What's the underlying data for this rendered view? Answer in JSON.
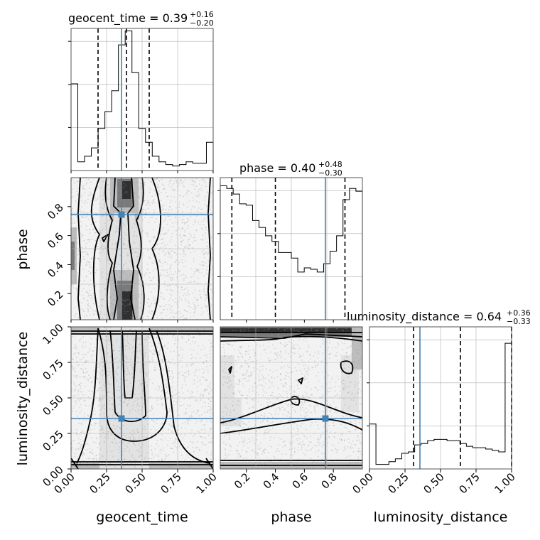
{
  "chart_data": {
    "type": "corner",
    "colors": {
      "truth": "#4682b4",
      "hist": "#000000",
      "contour": "#000000",
      "scatter": "#9a9a9a"
    },
    "parameters": [
      {
        "name": "geocent_time",
        "median": "0.39",
        "plus": "+0.16",
        "minus": "−0.20",
        "truth": 0.355,
        "quantiles": [
          0.19,
          0.39,
          0.55
        ],
        "range": [
          0,
          1
        ]
      },
      {
        "name": "phase",
        "median": "0.40",
        "plus": "+0.48",
        "minus": "−0.30",
        "truth": 0.745,
        "quantiles": [
          0.1,
          0.4,
          0.88
        ],
        "range": [
          0.02,
          1.0
        ]
      },
      {
        "name": "luminosity_distance",
        "median": "0.64",
        "plus": "+0.36",
        "minus": "−0.33",
        "truth": 0.355,
        "quantiles": [
          0.31,
          0.64,
          1.0
        ],
        "range": [
          0,
          1
        ]
      }
    ],
    "tick_labels": {
      "geocent_time": [
        "0.00",
        "0.25",
        "0.50",
        "0.75",
        "1.00"
      ],
      "phase": [
        "0.2",
        "0.4",
        "0.6",
        "0.8"
      ],
      "luminosity_distance": [
        "0.00",
        "0.25",
        "0.50",
        "0.75",
        "1.00"
      ]
    },
    "histograms": {
      "geocent_time": [
        0.62,
        0.06,
        0.1,
        0.16,
        0.3,
        0.42,
        0.57,
        0.9,
        1.0,
        0.7,
        0.3,
        0.2,
        0.1,
        0.06,
        0.04,
        0.03,
        0.04,
        0.06,
        0.05,
        0.05,
        0.2
      ],
      "phase": [
        0.96,
        0.94,
        0.9,
        0.83,
        0.82,
        0.71,
        0.66,
        0.6,
        0.56,
        0.48,
        0.48,
        0.44,
        0.34,
        0.37,
        0.36,
        0.34,
        0.4,
        0.49,
        0.6,
        0.86,
        0.94,
        0.92
      ],
      "luminosity_distance": [
        0.32,
        0.03,
        0.03,
        0.05,
        0.07,
        0.11,
        0.12,
        0.17,
        0.18,
        0.2,
        0.21,
        0.21,
        0.2,
        0.2,
        0.18,
        0.16,
        0.15,
        0.15,
        0.14,
        0.13,
        0.12,
        0.9
      ]
    },
    "histogram_ylim": [
      0,
      1.0
    ]
  }
}
